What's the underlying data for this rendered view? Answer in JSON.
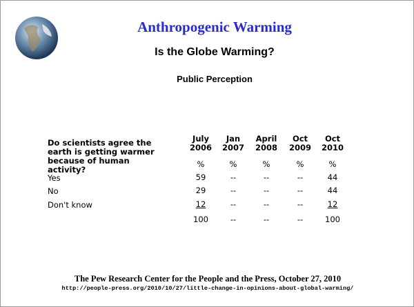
{
  "header": {
    "title": "Anthropogenic Warming",
    "subtitle": "Is the Globe Warming?",
    "subheading": "Public Perception"
  },
  "table": {
    "question": "Do scientists agree the earth is getting warmer because of human activity?",
    "columns": [
      [
        "July",
        "2006"
      ],
      [
        "Jan",
        "2007"
      ],
      [
        "April",
        "2008"
      ],
      [
        "Oct",
        "2009"
      ],
      [
        "Oct",
        "2010"
      ]
    ],
    "units": [
      "%",
      "%",
      "%",
      "%",
      "%"
    ],
    "rows": [
      {
        "label": "Yes",
        "cells": [
          59,
          "--",
          "--",
          "--",
          44
        ]
      },
      {
        "label": "No",
        "cells": [
          29,
          "--",
          "--",
          "--",
          44
        ]
      },
      {
        "label": "Don't know",
        "cells": [
          12,
          "--",
          "--",
          "--",
          12
        ]
      }
    ],
    "total": [
      100,
      "--",
      "--",
      "--",
      100
    ]
  },
  "footer": {
    "source": "The Pew Research Center for the People and the Press, October 27, 2010",
    "url": "http://people-press.org/2010/10/27/little-change-in-opinions-about-global-warming/"
  }
}
